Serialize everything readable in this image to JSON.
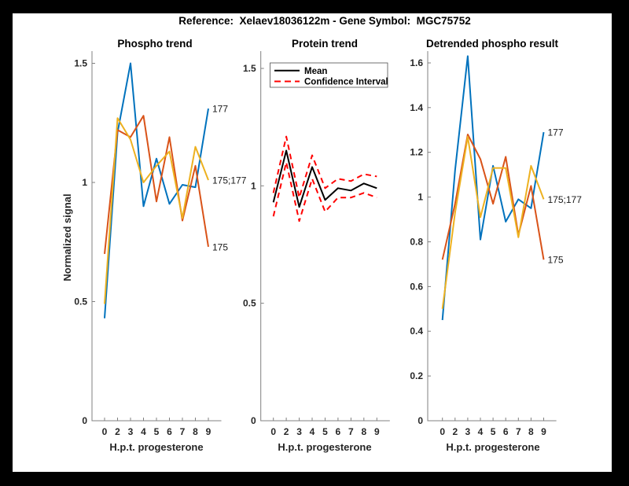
{
  "title": "Reference:  Xelaev18036122m - Gene Symbol:  MGC75752",
  "colors": {
    "series_blue": "#0072BD",
    "series_orange": "#D95319",
    "series_yellow": "#EDB120",
    "mean_black": "#000000",
    "ci_red": "#FF0000",
    "axis_gray": "#808080",
    "text_dark": "#262626",
    "figure_background": "#FFFFFF",
    "frame": "#000000"
  },
  "x_axis": {
    "label": "H.p.t. progesterone",
    "ticklabels": [
      "0",
      "2",
      "3",
      "4",
      "5",
      "6",
      "7",
      "8",
      "9"
    ]
  },
  "chart_data": [
    {
      "type": "line",
      "title": "Phospho trend",
      "xlabel": "H.p.t. progesterone",
      "ylabel": "Normalized signal",
      "x_ticklabels": [
        "0",
        "2",
        "3",
        "4",
        "5",
        "6",
        "7",
        "8",
        "9"
      ],
      "y_tick_values": [
        0,
        0.5,
        1,
        1.5
      ],
      "y_ticklabels": [
        "0",
        "0.5",
        "1",
        "1.5"
      ],
      "ylim": [
        0,
        1.55
      ],
      "grid": false,
      "legend": null,
      "series": [
        {
          "name": "177",
          "color": "#0072BD",
          "style": "solid",
          "end_label": "177",
          "values": [
            0.43,
            1.21,
            1.5,
            0.9,
            1.1,
            0.91,
            0.99,
            0.98,
            1.31
          ]
        },
        {
          "name": "175",
          "color": "#D95319",
          "style": "solid",
          "end_label": "175",
          "values": [
            0.7,
            1.22,
            1.19,
            1.28,
            0.92,
            1.19,
            0.84,
            1.07,
            0.73
          ]
        },
        {
          "name": "175;177",
          "color": "#EDB120",
          "style": "solid",
          "end_label": "175;177",
          "values": [
            0.49,
            1.27,
            1.18,
            1.0,
            1.07,
            1.13,
            0.85,
            1.15,
            1.01
          ]
        }
      ]
    },
    {
      "type": "line",
      "title": "Protein trend",
      "xlabel": "H.p.t. progesterone",
      "ylabel": "",
      "x_ticklabels": [
        "0",
        "2",
        "3",
        "4",
        "5",
        "6",
        "7",
        "8",
        "9"
      ],
      "y_tick_values": [
        0,
        0.5,
        1,
        1.5
      ],
      "y_ticklabels": [
        "0",
        "0.5",
        "1",
        "1.5"
      ],
      "ylim": [
        0,
        1.57
      ],
      "grid": false,
      "legend": {
        "position": "northwest",
        "entries": [
          {
            "label": "Mean",
            "color": "#000000",
            "style": "solid"
          },
          {
            "label": "Confidence Interval",
            "color": "#FF0000",
            "style": "dashed"
          }
        ]
      },
      "series": [
        {
          "name": "Mean",
          "color": "#000000",
          "style": "solid",
          "end_label": null,
          "values": [
            0.93,
            1.15,
            0.91,
            1.08,
            0.94,
            0.99,
            0.98,
            1.01,
            0.99
          ]
        },
        {
          "name": "CI-upper",
          "color": "#FF0000",
          "style": "dashed",
          "end_label": null,
          "values": [
            0.97,
            1.21,
            0.95,
            1.13,
            0.99,
            1.03,
            1.02,
            1.05,
            1.04
          ]
        },
        {
          "name": "CI-lower",
          "color": "#FF0000",
          "style": "dashed",
          "end_label": null,
          "values": [
            0.87,
            1.1,
            0.85,
            1.03,
            0.89,
            0.95,
            0.95,
            0.97,
            0.95
          ]
        }
      ]
    },
    {
      "type": "line",
      "title": "Detrended phospho result",
      "xlabel": "H.p.t. progesterone",
      "ylabel": "",
      "x_ticklabels": [
        "0",
        "2",
        "3",
        "4",
        "5",
        "6",
        "7",
        "8",
        "9"
      ],
      "y_tick_values": [
        0,
        0.2,
        0.4,
        0.6,
        0.8,
        1.0,
        1.2,
        1.4,
        1.6
      ],
      "y_ticklabels": [
        "0",
        "0.2",
        "0.4",
        "0.6",
        "0.8",
        "1",
        "1.2",
        "1.4",
        "1.6"
      ],
      "ylim": [
        0,
        1.65
      ],
      "grid": false,
      "legend": null,
      "series": [
        {
          "name": "177",
          "color": "#0072BD",
          "style": "solid",
          "end_label": "177",
          "values": [
            0.45,
            1.12,
            1.63,
            0.81,
            1.14,
            0.89,
            0.99,
            0.95,
            1.29
          ]
        },
        {
          "name": "175",
          "color": "#D95319",
          "style": "solid",
          "end_label": "175",
          "values": [
            0.72,
            0.97,
            1.28,
            1.17,
            0.97,
            1.18,
            0.83,
            1.05,
            0.72
          ]
        },
        {
          "name": "175;177",
          "color": "#EDB120",
          "style": "solid",
          "end_label": "175;177",
          "values": [
            0.5,
            0.93,
            1.27,
            0.91,
            1.13,
            1.13,
            0.82,
            1.14,
            0.99
          ]
        }
      ]
    }
  ]
}
